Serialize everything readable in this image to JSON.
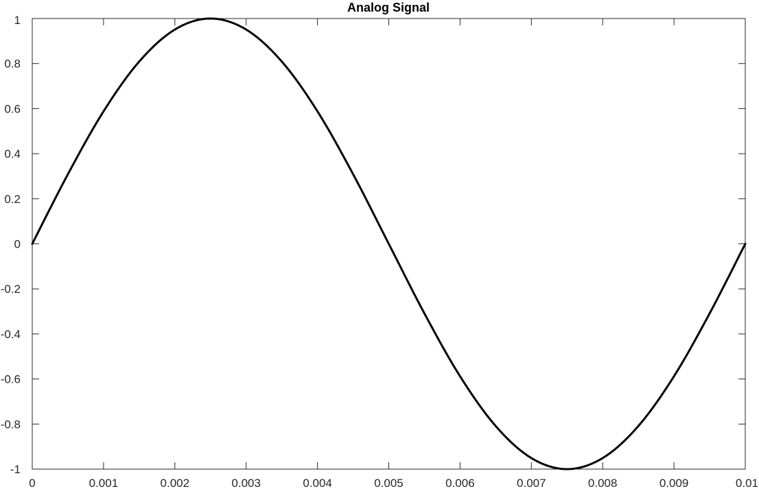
{
  "chart_data": {
    "type": "line",
    "title": "Analog Signal",
    "xlabel": "",
    "ylabel": "",
    "xlim": [
      0,
      0.01
    ],
    "ylim": [
      -1,
      1
    ],
    "grid": false,
    "x_ticks": [
      0,
      0.001,
      0.002,
      0.003,
      0.004,
      0.005,
      0.006,
      0.007,
      0.008,
      0.009,
      0.01
    ],
    "x_tick_labels": [
      "0",
      "0.001",
      "0.002",
      "0.003",
      "0.004",
      "0.005",
      "0.006",
      "0.007",
      "0.008",
      "0.009",
      "0.01"
    ],
    "y_ticks": [
      1,
      0.8,
      0.6,
      0.4,
      0.2,
      0,
      -0.2,
      -0.4,
      -0.6,
      -0.8,
      -1
    ],
    "y_tick_labels": [
      "1",
      "0.8",
      "0.6",
      "0.4",
      "0.2",
      "0",
      "-0.2",
      "-0.4",
      "-0.6",
      "-0.8",
      "-1"
    ],
    "series": [
      {
        "color": "#000000",
        "x": [
          0,
          0.0005,
          0.001,
          0.0015,
          0.002,
          0.0025,
          0.003,
          0.0035,
          0.004,
          0.0045,
          0.005,
          0.0055,
          0.006,
          0.0065,
          0.007,
          0.0075,
          0.008,
          0.0085,
          0.009,
          0.0095,
          0.01
        ],
        "y": [
          0,
          0.309,
          0.588,
          0.809,
          0.951,
          1,
          0.951,
          0.809,
          0.588,
          0.309,
          0,
          -0.309,
          -0.588,
          -0.809,
          -0.951,
          -1,
          -0.951,
          -0.809,
          -0.588,
          -0.309,
          0
        ]
      }
    ]
  }
}
